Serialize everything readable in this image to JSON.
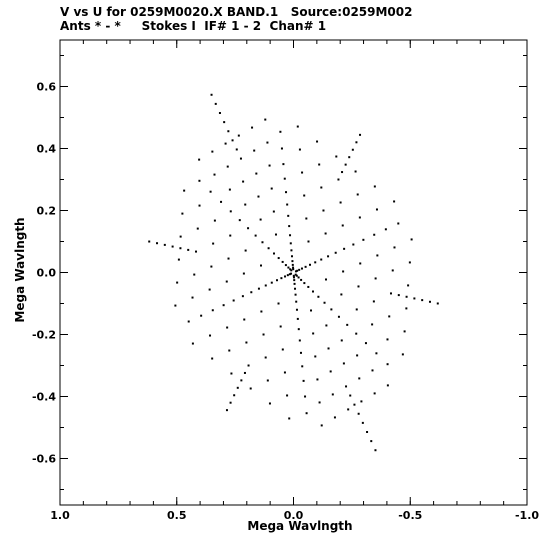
{
  "header": {
    "line1": "V vs U for 0259M0020.X BAND.1   Source:0259M002",
    "line2": "Ants * - *     Stokes I  IF# 1 - 2  Chan# 1"
  },
  "chart_data": {
    "type": "scatter",
    "xlabel": "Mega Wavlngth",
    "ylabel": "Mega Wavlngth",
    "xlim": [
      1.0,
      -1.0
    ],
    "ylim": [
      -0.75,
      0.75
    ],
    "x_reversed": true,
    "xticks": [
      1.0,
      0.5,
      0.0,
      -0.5,
      -1.0
    ],
    "xtick_labels": [
      "1.0",
      "0.5",
      "0.0",
      "-0.5",
      "-1.0"
    ],
    "yticks": [
      -0.6,
      -0.4,
      -0.2,
      0.0,
      0.2,
      0.4,
      0.6
    ],
    "ytick_labels": [
      "-0.6",
      "-0.4",
      "-0.2",
      "0.0",
      "0.2",
      "0.4",
      "0.6"
    ],
    "grid": false,
    "marker_color": "#000000",
    "arms": [
      {
        "end": [
          0.055,
          0.445
        ],
        "tail": 7
      },
      {
        "end": [
          0.395,
          0.29
        ],
        "tail": 6
      },
      {
        "end": [
          0.44,
          -0.155
        ],
        "tail": 6
      },
      {
        "end": [
          -0.055,
          -0.445
        ],
        "tail": 7
      },
      {
        "end": [
          -0.395,
          -0.29
        ],
        "tail": 6
      },
      {
        "end": [
          -0.44,
          0.155
        ],
        "tail": 6
      }
    ],
    "arm_points": 16,
    "grid_steps": 6
  }
}
